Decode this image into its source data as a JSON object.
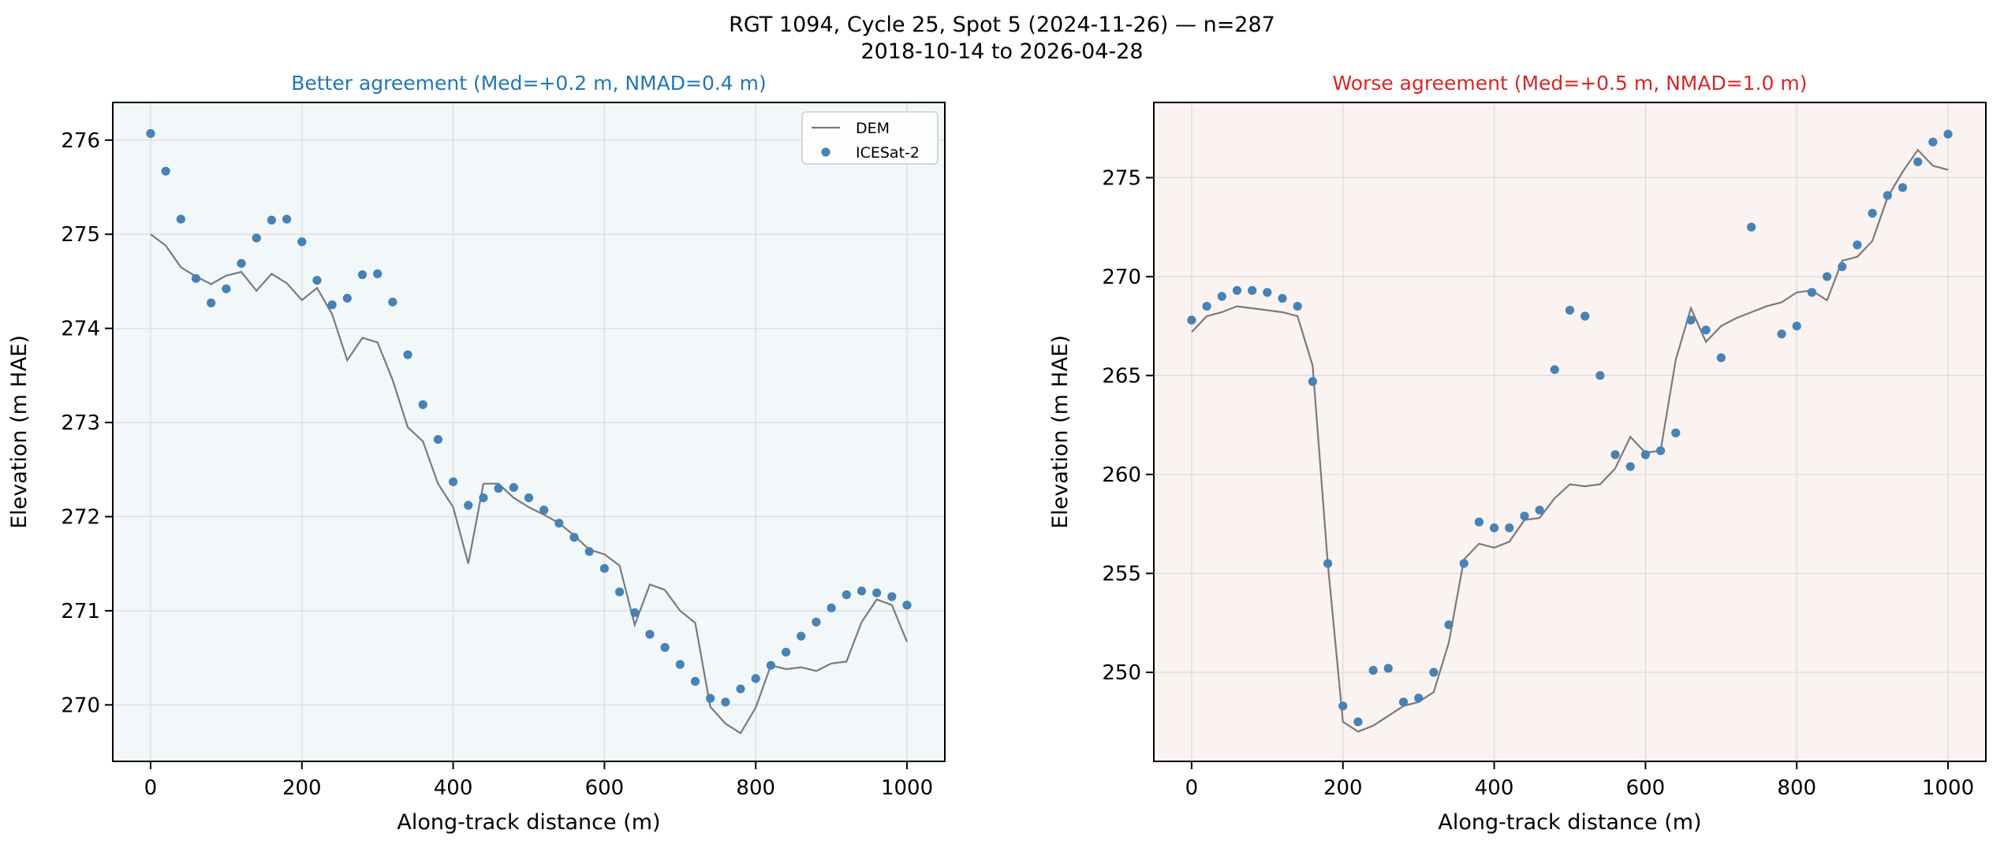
{
  "figure": {
    "suptitle_line1": "RGT 1094, Cycle 25, Spot 5 (2024-11-26) — n=287",
    "suptitle_line2": "2018-10-14 to 2026-04-28"
  },
  "chart_data": [
    {
      "type": "scatter",
      "title": "Better agreement (Med=+0.2 m, NMAD=0.4 m)",
      "title_color": "#1f77b4",
      "background": "#f2f7fa",
      "xlabel": "Along-track distance (m)",
      "ylabel": "Elevation (m HAE)",
      "xlim": [
        -50,
        1050
      ],
      "ylim": [
        269.4,
        276.4
      ],
      "xticks": [
        0,
        200,
        400,
        600,
        800,
        1000
      ],
      "yticks": [
        270,
        271,
        272,
        273,
        274,
        275,
        276
      ],
      "grid": true,
      "legend": "top-right",
      "series": [
        {
          "name": "DEM",
          "kind": "line",
          "color": "#7a7a7a",
          "x": [
            0,
            20,
            40,
            60,
            80,
            100,
            120,
            140,
            160,
            180,
            200,
            220,
            240,
            260,
            280,
            300,
            320,
            340,
            360,
            380,
            400,
            420,
            440,
            460,
            480,
            500,
            520,
            540,
            560,
            580,
            600,
            620,
            640,
            660,
            680,
            700,
            720,
            740,
            760,
            780,
            800,
            820,
            840,
            860,
            880,
            900,
            920,
            940,
            960,
            980,
            1000
          ],
          "y": [
            275.0,
            274.88,
            274.65,
            274.55,
            274.47,
            274.56,
            274.6,
            274.4,
            274.58,
            274.48,
            274.3,
            274.43,
            274.15,
            273.66,
            273.9,
            273.85,
            273.45,
            272.95,
            272.8,
            272.35,
            272.1,
            271.5,
            272.35,
            272.35,
            272.2,
            272.1,
            272.02,
            271.93,
            271.8,
            271.65,
            271.6,
            271.48,
            270.85,
            271.28,
            271.22,
            271.0,
            270.87,
            269.98,
            269.8,
            269.7,
            269.97,
            270.42,
            270.38,
            270.4,
            270.36,
            270.44,
            270.46,
            270.88,
            271.12,
            271.06,
            270.67
          ]
        },
        {
          "name": "ICESat-2",
          "kind": "scatter",
          "color": "#4682b4",
          "x": [
            0,
            20,
            40,
            60,
            80,
            100,
            120,
            140,
            160,
            180,
            200,
            220,
            240,
            260,
            280,
            300,
            320,
            340,
            360,
            380,
            400,
            420,
            440,
            460,
            480,
            500,
            520,
            540,
            560,
            580,
            600,
            620,
            640,
            660,
            680,
            700,
            720,
            740,
            760,
            780,
            800,
            820,
            840,
            860,
            880,
            900,
            920,
            940,
            960,
            980,
            1000
          ],
          "y": [
            276.07,
            275.67,
            275.16,
            274.53,
            274.27,
            274.42,
            274.69,
            274.96,
            275.15,
            275.16,
            274.92,
            274.51,
            274.25,
            274.32,
            274.57,
            274.58,
            274.28,
            273.72,
            273.19,
            272.82,
            272.37,
            272.12,
            272.2,
            272.3,
            272.31,
            272.2,
            272.07,
            271.93,
            271.78,
            271.63,
            271.45,
            271.2,
            270.98,
            270.75,
            270.61,
            270.43,
            270.25,
            270.07,
            270.03,
            270.17,
            270.28,
            270.42,
            270.56,
            270.73,
            270.88,
            271.03,
            271.17,
            271.21,
            271.19,
            271.15,
            271.06
          ]
        }
      ]
    },
    {
      "type": "scatter",
      "title": "Worse agreement (Med=+0.5 m, NMAD=1.0 m)",
      "title_color": "#d62728",
      "background": "#fbf2f2",
      "xlabel": "Along-track distance (m)",
      "ylabel": "Elevation (m HAE)",
      "xlim": [
        -50,
        1050
      ],
      "ylim": [
        245.5,
        278.8
      ],
      "xticks": [
        0,
        200,
        400,
        600,
        800,
        1000
      ],
      "yticks": [
        250,
        255,
        260,
        265,
        270,
        275
      ],
      "grid": true,
      "series": [
        {
          "name": "DEM",
          "kind": "line",
          "color": "#7a7a7a",
          "x": [
            0,
            20,
            40,
            60,
            80,
            100,
            120,
            140,
            160,
            180,
            200,
            220,
            240,
            260,
            280,
            300,
            320,
            340,
            360,
            380,
            400,
            420,
            440,
            460,
            480,
            500,
            520,
            540,
            560,
            580,
            600,
            620,
            640,
            660,
            680,
            700,
            720,
            740,
            760,
            780,
            800,
            820,
            840,
            860,
            880,
            900,
            920,
            940,
            960,
            980,
            1000
          ],
          "y": [
            267.2,
            268.0,
            268.2,
            268.5,
            268.4,
            268.3,
            268.2,
            268.0,
            265.5,
            255.5,
            247.5,
            247.0,
            247.3,
            247.8,
            248.3,
            248.5,
            249.0,
            251.5,
            255.7,
            256.5,
            256.3,
            256.6,
            257.7,
            257.8,
            258.8,
            259.5,
            259.4,
            259.5,
            260.3,
            261.9,
            261.1,
            261.2,
            265.8,
            268.4,
            266.7,
            267.5,
            267.9,
            268.2,
            268.5,
            268.7,
            269.2,
            269.3,
            268.8,
            270.8,
            271.0,
            271.8,
            274.0,
            275.3,
            276.4,
            275.6,
            275.4
          ]
        },
        {
          "name": "ICESat-2",
          "kind": "scatter",
          "color": "#4682b4",
          "x": [
            0,
            20,
            40,
            60,
            80,
            100,
            120,
            140,
            160,
            180,
            200,
            220,
            240,
            260,
            280,
            300,
            320,
            340,
            360,
            380,
            400,
            420,
            440,
            460,
            480,
            500,
            520,
            540,
            560,
            580,
            600,
            620,
            640,
            660,
            680,
            700,
            740,
            780,
            800,
            820,
            840,
            860,
            880,
            900,
            920,
            940,
            960,
            980,
            1000
          ],
          "y": [
            267.8,
            268.5,
            269.0,
            269.3,
            269.3,
            269.2,
            268.9,
            268.5,
            264.7,
            255.5,
            248.3,
            247.5,
            250.1,
            250.2,
            248.5,
            248.7,
            250.0,
            252.4,
            255.5,
            257.6,
            257.3,
            257.3,
            257.9,
            258.2,
            265.3,
            268.3,
            268.0,
            265.0,
            261.0,
            260.4,
            261.0,
            261.2,
            262.1,
            267.8,
            267.3,
            265.9,
            272.5,
            267.1,
            267.5,
            269.2,
            270.0,
            270.5,
            271.6,
            273.2,
            274.1,
            274.5,
            275.8,
            276.8,
            277.2
          ]
        }
      ]
    }
  ]
}
